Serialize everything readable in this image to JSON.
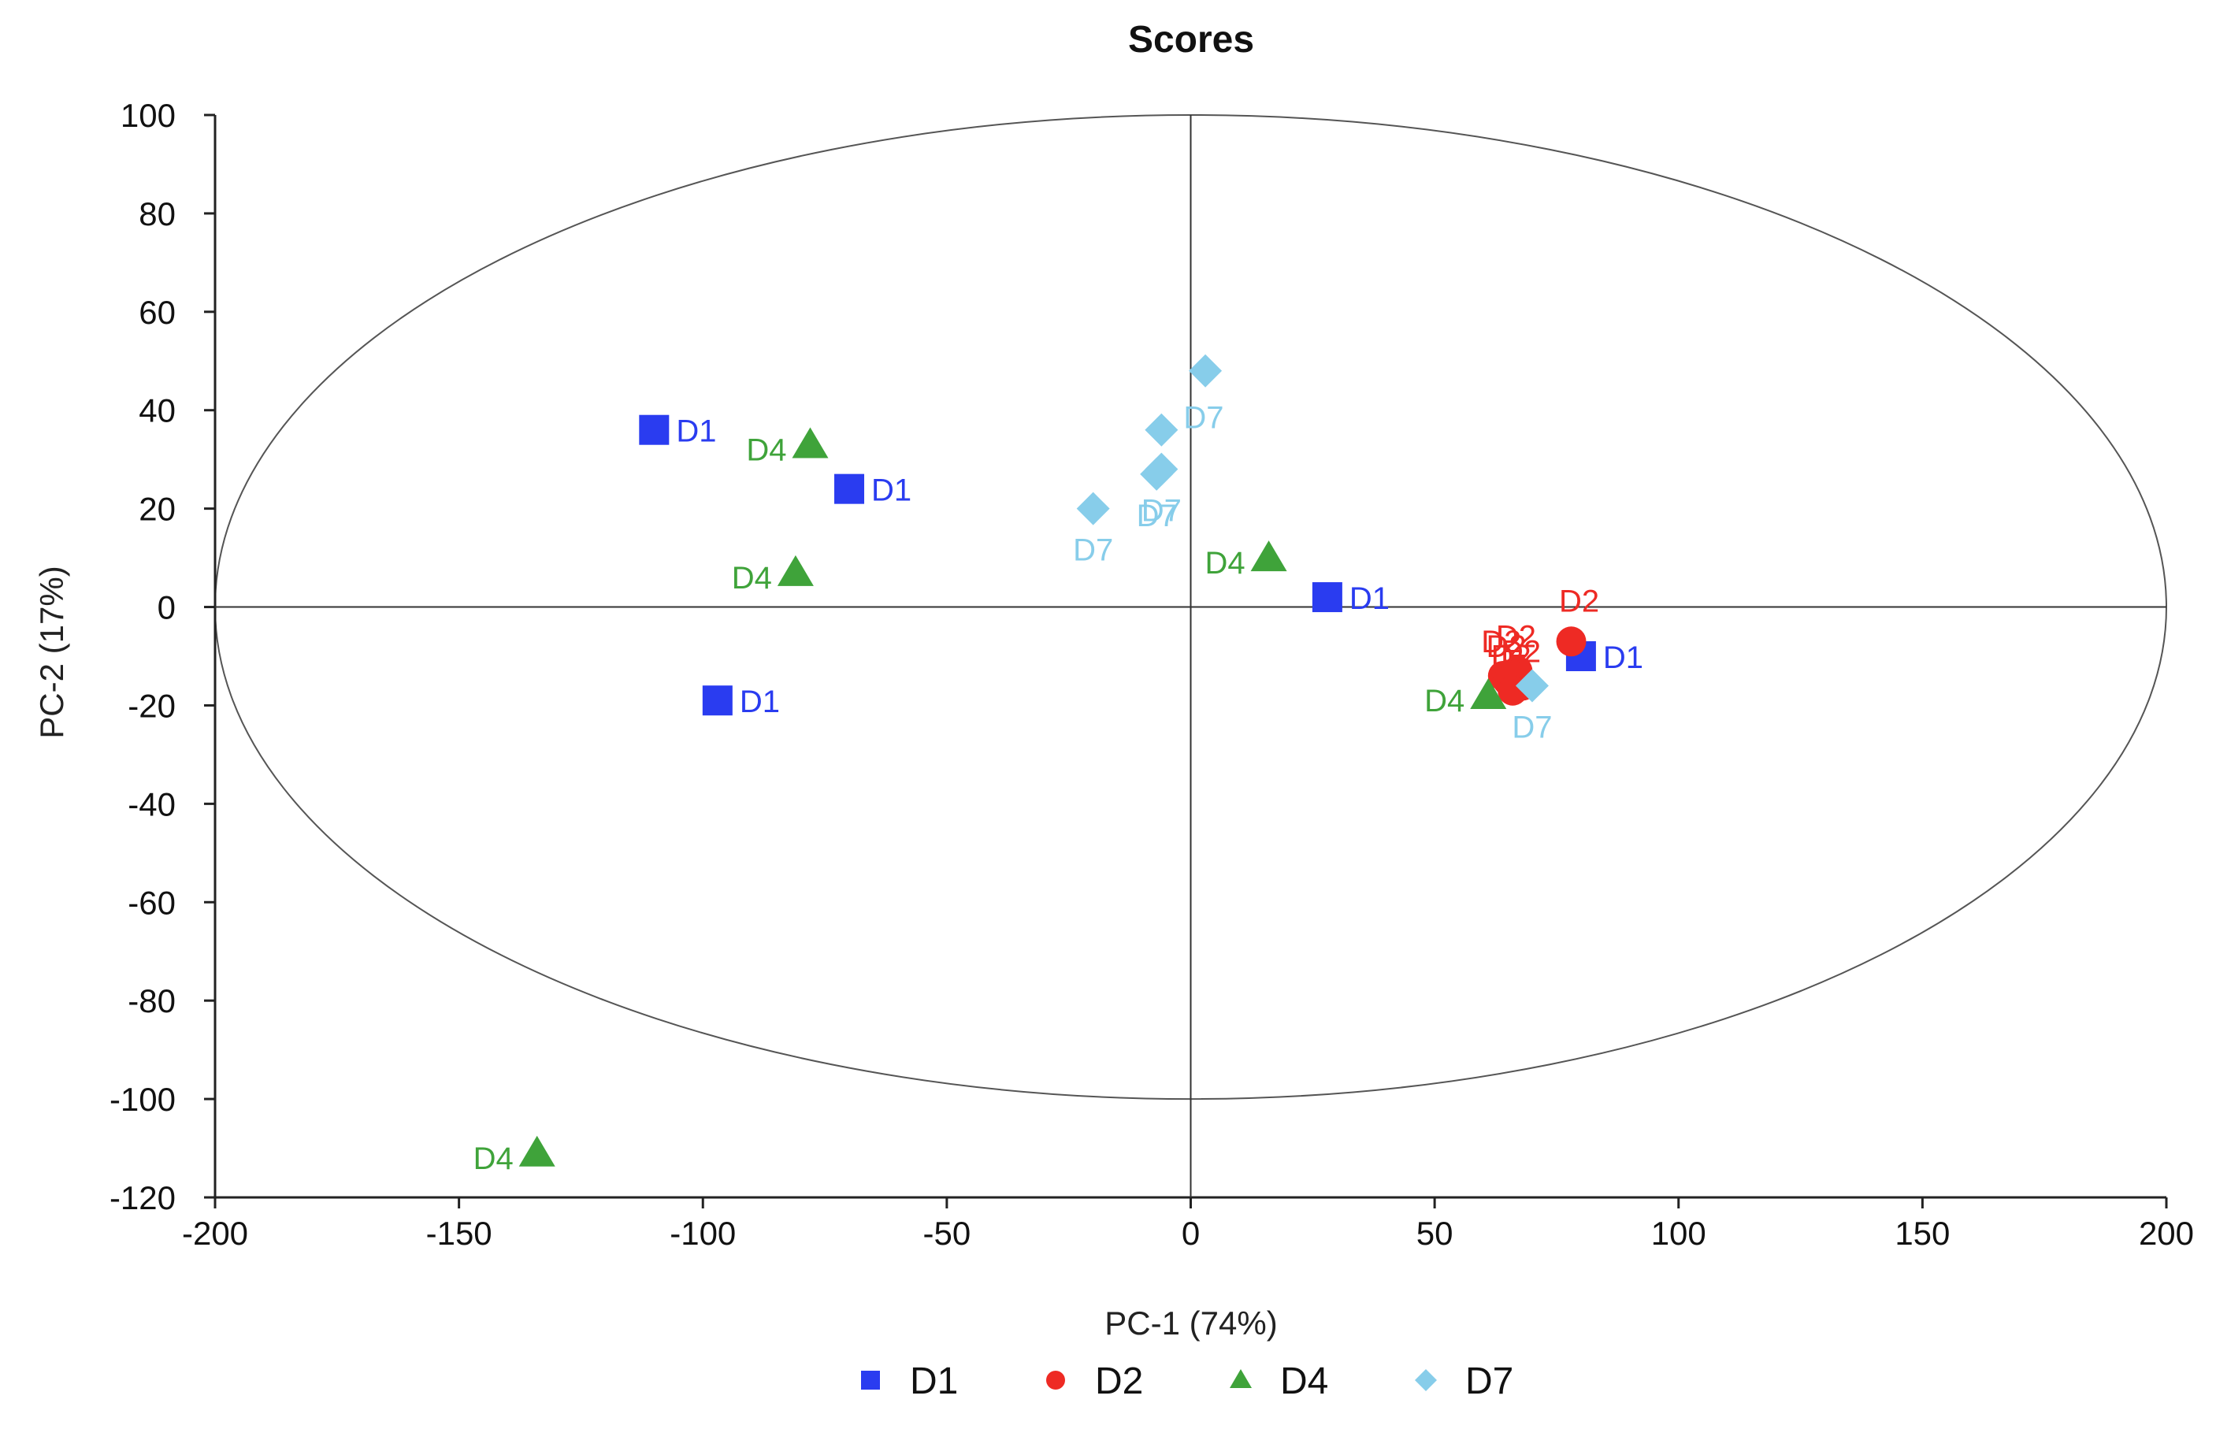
{
  "chart_data": {
    "type": "scatter",
    "title": "Scores",
    "xlabel": "PC-1 (74%)",
    "ylabel": "PC-2 (17%)",
    "xlim": [
      -200,
      200
    ],
    "ylim": [
      -120,
      100
    ],
    "xticks": [
      -200,
      -150,
      -100,
      -50,
      0,
      50,
      100,
      150,
      200
    ],
    "yticks": [
      -120,
      -100,
      -80,
      -60,
      -40,
      -20,
      0,
      20,
      40,
      60,
      80,
      100
    ],
    "grid": false,
    "reference_lines": {
      "x": 0,
      "y": 0
    },
    "ellipse": {
      "center": [
        0,
        0
      ],
      "rx": 200,
      "ry": 100
    },
    "legend_position": "bottom-center",
    "series": [
      {
        "name": "D1",
        "marker": "square",
        "color": "#2a3cf0",
        "points": [
          {
            "x": -110,
            "y": 36,
            "label": "D1"
          },
          {
            "x": -70,
            "y": 24,
            "label": "D1"
          },
          {
            "x": -97,
            "y": -19,
            "label": "D1"
          },
          {
            "x": 28,
            "y": 2,
            "label": "D1"
          },
          {
            "x": 80,
            "y": -10,
            "label": "D1"
          }
        ]
      },
      {
        "name": "D2",
        "marker": "circle",
        "color": "#ee2a24",
        "points": [
          {
            "x": 78,
            "y": -7,
            "label": "D2"
          },
          {
            "x": 64,
            "y": -14,
            "label": "D2"
          },
          {
            "x": 65,
            "y": -15,
            "label": "D2"
          },
          {
            "x": 67,
            "y": -13,
            "label": "D2"
          },
          {
            "x": 68,
            "y": -16,
            "label": "D2"
          },
          {
            "x": 66,
            "y": -17,
            "label": "D2"
          }
        ]
      },
      {
        "name": "D4",
        "marker": "triangle",
        "color": "#3fa33a",
        "points": [
          {
            "x": -78,
            "y": 33,
            "label": "D4"
          },
          {
            "x": -81,
            "y": 7,
            "label": "D4"
          },
          {
            "x": 16,
            "y": 10,
            "label": "D4"
          },
          {
            "x": 61,
            "y": -18,
            "label": "D4"
          },
          {
            "x": -134,
            "y": -111,
            "label": "D4"
          }
        ]
      },
      {
        "name": "D7",
        "marker": "diamond",
        "color": "#87cdea",
        "points": [
          {
            "x": 3,
            "y": 48,
            "label": ""
          },
          {
            "x": -6,
            "y": 36,
            "label": "D7"
          },
          {
            "x": -6,
            "y": 28,
            "label": "D7"
          },
          {
            "x": -20,
            "y": 20,
            "label": "D7"
          },
          {
            "x": -7,
            "y": 27,
            "label": "D7"
          },
          {
            "x": 70,
            "y": -16,
            "label": "D7"
          }
        ]
      }
    ]
  }
}
